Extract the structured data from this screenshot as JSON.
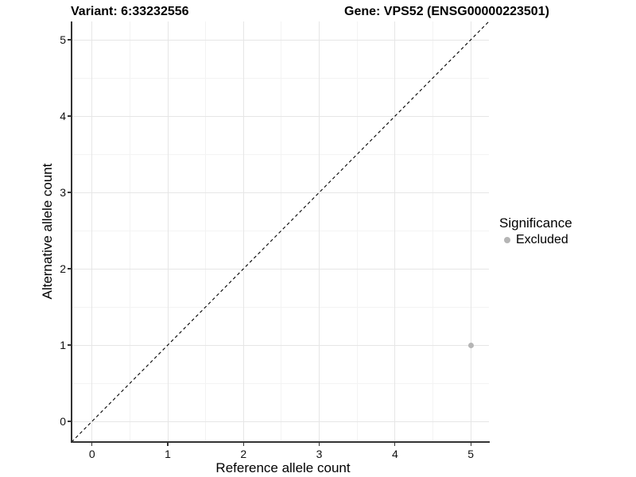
{
  "legend": {
    "title": "Significance",
    "items": [
      {
        "label": "Excluded",
        "color": "#b5b5b5"
      }
    ]
  },
  "colors": {
    "background": "#ffffff",
    "axis_line": "#333333",
    "tick_mark": "#333333",
    "grid_major": "#e6e6e6",
    "grid_minor": "#f3f3f3",
    "reference_line": "#000000",
    "text": "#000000"
  },
  "chart_data": {
    "type": "scatter",
    "title_left": "Variant: 6:33232556",
    "title_right": "Gene: VPS52 (ENSG00000223501)",
    "xlabel": "Reference allele count",
    "ylabel": "Alternative allele count",
    "xlim": [
      -0.27,
      5.24
    ],
    "ylim": [
      -0.27,
      5.24
    ],
    "x_ticks": [
      0,
      1,
      2,
      3,
      4,
      5
    ],
    "y_ticks": [
      0,
      1,
      2,
      3,
      4,
      5
    ],
    "x_minor": [
      0.5,
      1.5,
      2.5,
      3.5,
      4.5
    ],
    "y_minor": [
      0.5,
      1.5,
      2.5,
      3.5,
      4.5
    ],
    "grid": "major+minor",
    "legend_position": "right",
    "series": [
      {
        "name": "Excluded",
        "color": "#b5b5b5",
        "points": [
          {
            "x": 5,
            "y": 1
          }
        ]
      }
    ],
    "reference_line": {
      "type": "identity y=x",
      "style": "dashed",
      "color": "#000000",
      "from": {
        "x": -0.27,
        "y": -0.27
      },
      "to": {
        "x": 5.24,
        "y": 5.24
      }
    }
  }
}
